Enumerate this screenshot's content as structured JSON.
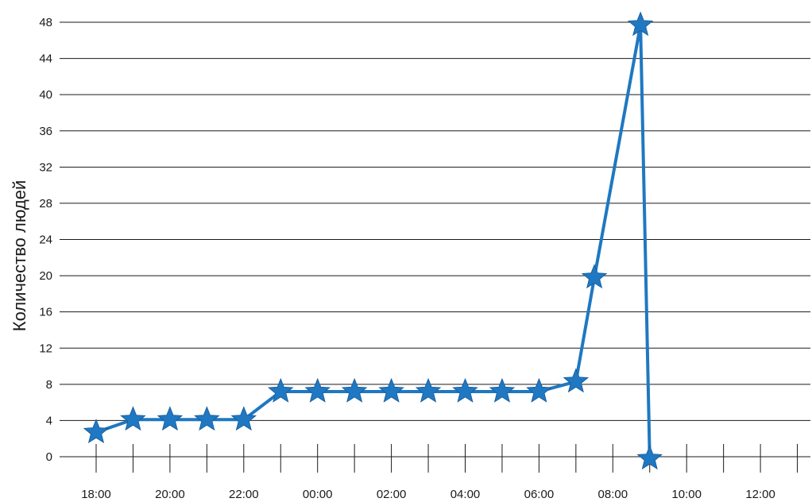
{
  "chart_data": {
    "type": "line",
    "ylabel": "Количество людей",
    "xlabel": "",
    "title": "",
    "ylim": [
      0,
      48
    ],
    "yticks": [
      "0",
      "4",
      "8",
      "12",
      "16",
      "20",
      "24",
      "28",
      "32",
      "36",
      "40",
      "44",
      "48"
    ],
    "xlim": [
      0,
      19
    ],
    "xticks": [
      {
        "value": 0,
        "label": "18:00"
      },
      {
        "value": 2,
        "label": "20:00"
      },
      {
        "value": 4,
        "label": "22:00"
      },
      {
        "value": 6,
        "label": "00:00"
      },
      {
        "value": 8,
        "label": "02:00"
      },
      {
        "value": 10,
        "label": "04:00"
      },
      {
        "value": 12,
        "label": "06:00"
      },
      {
        "value": 14,
        "label": "08:00"
      },
      {
        "value": 16,
        "label": "10:00"
      },
      {
        "value": 18,
        "label": "12:00"
      }
    ],
    "xmarks": [
      0,
      1,
      2,
      3,
      4,
      5,
      6,
      7,
      8,
      9,
      10,
      11,
      12,
      13,
      14,
      15,
      16,
      17,
      18,
      19
    ],
    "grid": true,
    "marker": "star",
    "color": "#1f78c1",
    "series": [
      {
        "x": [
          0,
          1,
          2,
          3,
          4,
          5,
          6,
          7,
          8,
          9,
          10,
          11,
          12,
          13,
          13.5,
          14.75,
          15
        ],
        "values": [
          2.7,
          4.1,
          4.1,
          4.1,
          4.1,
          7.2,
          7.2,
          7.2,
          7.2,
          7.2,
          7.2,
          7.2,
          7.2,
          8.3,
          19.8,
          47.7,
          -0.2
        ]
      }
    ]
  }
}
